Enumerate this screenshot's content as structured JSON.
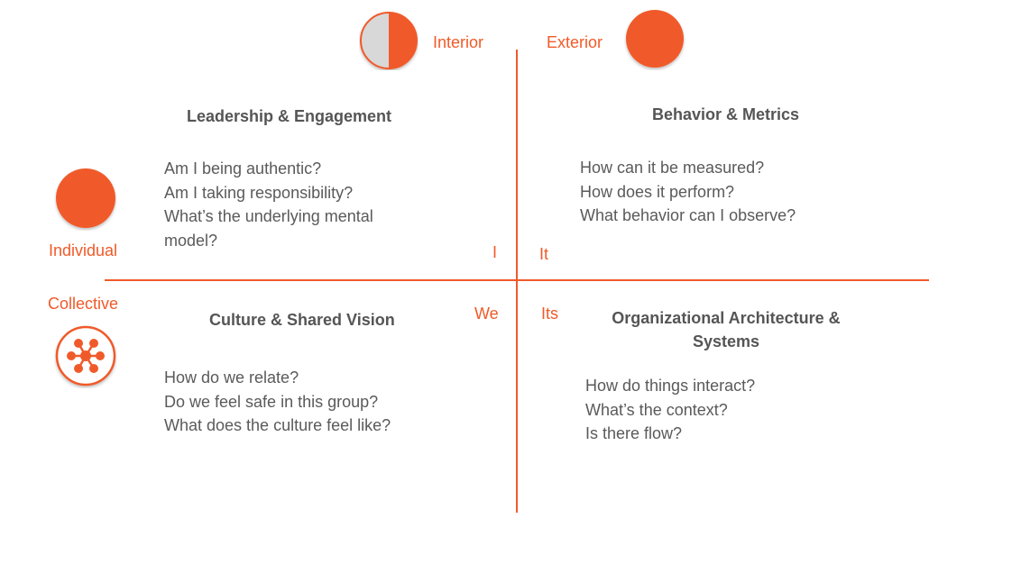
{
  "axes": {
    "interior": "Interior",
    "exterior": "Exterior",
    "individual": "Individual",
    "collective": "Collective"
  },
  "quadrant_labels": {
    "i": "I",
    "it": "It",
    "we": "We",
    "its": "Its"
  },
  "quadrants": {
    "upper_left": {
      "title": "Leadership & Engagement",
      "questions": [
        "Am I being authentic?",
        "Am I taking responsibility?",
        "What’s the underlying mental",
        "model?"
      ]
    },
    "upper_right": {
      "title": "Behavior & Metrics",
      "questions": [
        "How can it be measured?",
        "How does it perform?",
        "What behavior can I observe?"
      ]
    },
    "lower_left": {
      "title": "Culture & Shared Vision",
      "questions": [
        "How do we relate?",
        "Do we feel safe in this group?",
        "What does the culture feel like?"
      ]
    },
    "lower_right": {
      "title_line1": "Organizational Architecture &",
      "title_line2": "Systems",
      "questions": [
        "How do things interact?",
        "What’s the context?",
        "Is there flow?"
      ]
    }
  },
  "colors": {
    "accent": "#f05a2a",
    "text": "#5a5a5a",
    "half_circle_light": "#d8d8d8"
  },
  "icons": {
    "interior": "half-circle-icon",
    "exterior": "full-circle-icon",
    "individual": "full-circle-icon",
    "collective": "network-icon"
  }
}
